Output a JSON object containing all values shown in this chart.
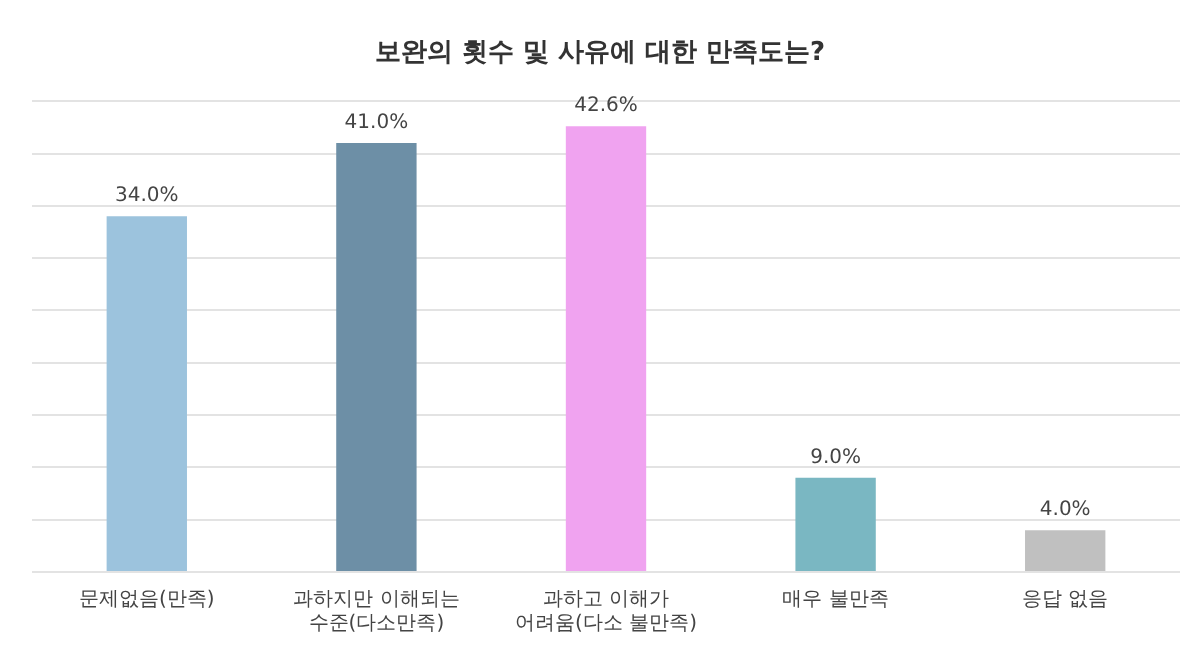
{
  "chart_data": {
    "type": "bar",
    "title": "보완의 횟수 및 사유에 대한 만족도는?",
    "categories": [
      "문제없음(만족)",
      "과하지만 이해되는 수준(다소만족)",
      "과하고 이해가 어려움(다소 불만족)",
      "매우 불만족",
      "응답 없음"
    ],
    "values": [
      34.0,
      41.0,
      42.6,
      9.0,
      4.0
    ],
    "value_labels": [
      "34.0%",
      "41.0%",
      "42.6%",
      "9.0%",
      "4.0%"
    ],
    "colors": [
      "#9cc3dd",
      "#6d8fa6",
      "#f0a3f0",
      "#7ab7c2",
      "#c0c0c0"
    ],
    "ylim": [
      0,
      45
    ],
    "yticks": [
      {
        "value": 0,
        "label": null
      },
      {
        "value": 5,
        "label": null
      },
      {
        "value": 10,
        "label": null
      },
      {
        "value": 15,
        "label": null
      },
      {
        "value": 20,
        "label": null
      },
      {
        "value": 25,
        "label": null
      },
      {
        "value": 30,
        "label": null
      },
      {
        "value": 35,
        "label": null
      },
      {
        "value": 40,
        "label": null
      },
      {
        "value": 45,
        "label": null
      }
    ],
    "grid": "y",
    "legend": false
  }
}
